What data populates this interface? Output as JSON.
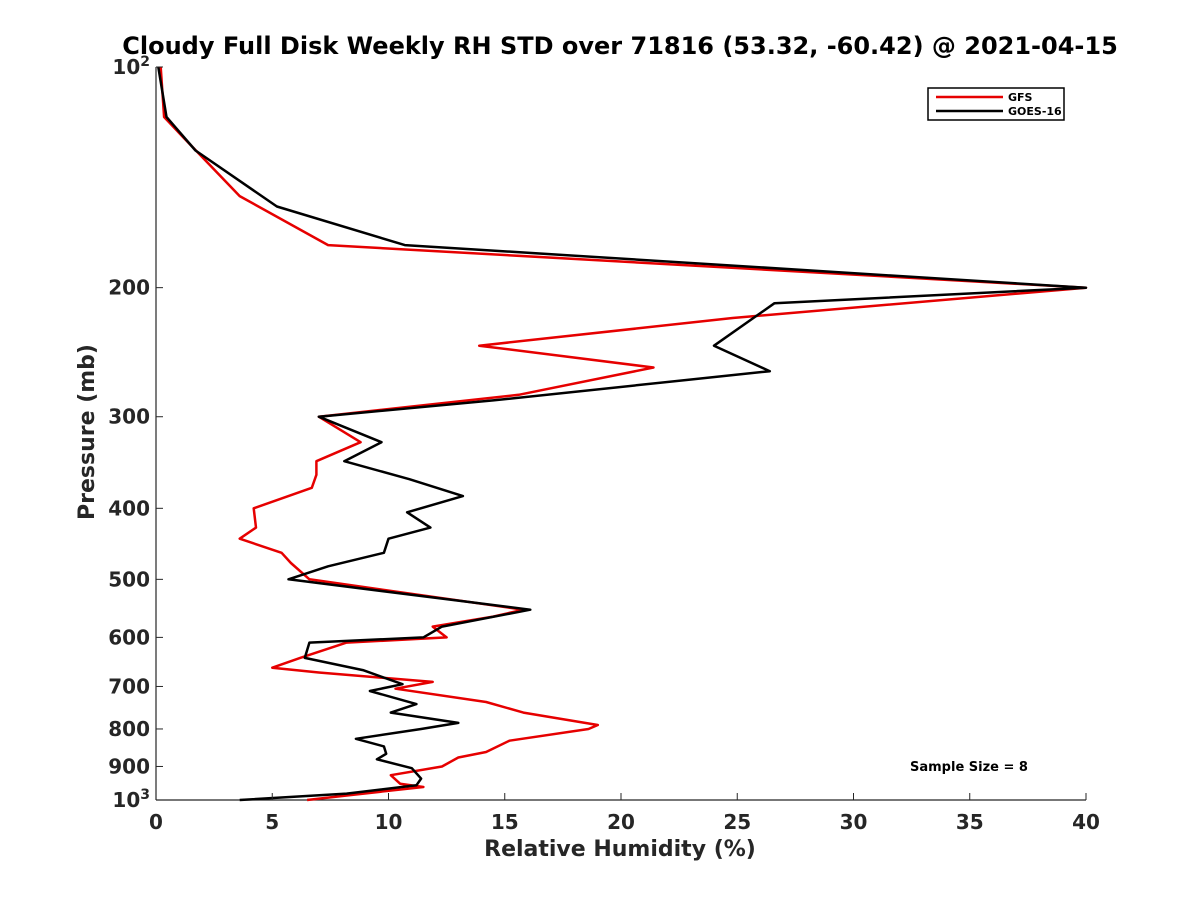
{
  "chart_data": {
    "type": "line",
    "title": "Cloudy Full Disk Weekly RH STD over 71816 (53.32, -60.42) @ 2021-04-15",
    "xlabel": "Relative Humidity (%)",
    "ylabel": "Pressure (mb)",
    "xlim": [
      0,
      40
    ],
    "ylim": [
      100,
      1000
    ],
    "y_scale": "log",
    "y_reversed": true,
    "x_ticks": [
      0,
      5,
      10,
      15,
      20,
      25,
      30,
      35,
      40
    ],
    "x_tick_labels": [
      "0",
      "5",
      "10",
      "15",
      "20",
      "25",
      "30",
      "35",
      "40"
    ],
    "y_ticks": [
      100,
      200,
      300,
      400,
      500,
      600,
      700,
      800,
      900,
      1000
    ],
    "y_tick_labels": [
      {
        "base": "10",
        "exp": "2"
      },
      {
        "base": "200",
        "exp": ""
      },
      {
        "base": "300",
        "exp": ""
      },
      {
        "base": "400",
        "exp": ""
      },
      {
        "base": "500",
        "exp": ""
      },
      {
        "base": "600",
        "exp": ""
      },
      {
        "base": "700",
        "exp": ""
      },
      {
        "base": "800",
        "exp": ""
      },
      {
        "base": "900",
        "exp": ""
      },
      {
        "base": "10",
        "exp": "3"
      }
    ],
    "grid": false,
    "legend_position": "top-right",
    "annotation": "Sample Size = 8",
    "series": [
      {
        "name": "GFS",
        "color": "#e60000",
        "points": [
          [
            0.2,
            100
          ],
          [
            0.35,
            117
          ],
          [
            1.2,
            125
          ],
          [
            3.6,
            150
          ],
          [
            7.4,
            175
          ],
          [
            40,
            200
          ],
          [
            24.8,
            220
          ],
          [
            13.9,
            240
          ],
          [
            21.4,
            257
          ],
          [
            15.6,
            280
          ],
          [
            7.0,
            300
          ],
          [
            8.8,
            325
          ],
          [
            6.9,
            345
          ],
          [
            6.9,
            360
          ],
          [
            6.7,
            375
          ],
          [
            4.2,
            400
          ],
          [
            4.3,
            425
          ],
          [
            3.6,
            440
          ],
          [
            5.4,
            460
          ],
          [
            5.8,
            475
          ],
          [
            6.6,
            500
          ],
          [
            15.8,
            550
          ],
          [
            14.5,
            562
          ],
          [
            11.9,
            580
          ],
          [
            12.5,
            600
          ],
          [
            8.2,
            610
          ],
          [
            6.2,
            640
          ],
          [
            5.0,
            660
          ],
          [
            7.0,
            670
          ],
          [
            11.9,
            690
          ],
          [
            10.3,
            705
          ],
          [
            14.2,
            735
          ],
          [
            15.8,
            760
          ],
          [
            19.0,
            790
          ],
          [
            18.6,
            800
          ],
          [
            15.2,
            830
          ],
          [
            14.2,
            860
          ],
          [
            13.0,
            875
          ],
          [
            12.3,
            900
          ],
          [
            10.1,
            925
          ],
          [
            10.5,
            950
          ],
          [
            11.5,
            960
          ],
          [
            8.3,
            985
          ],
          [
            6.5,
            1000
          ]
        ]
      },
      {
        "name": "GOES-16",
        "color": "#000000",
        "points": [
          [
            0.1,
            100
          ],
          [
            0.45,
            117
          ],
          [
            1.7,
            130
          ],
          [
            5.2,
            155
          ],
          [
            10.7,
            175
          ],
          [
            40,
            200
          ],
          [
            26.6,
            210
          ],
          [
            24.0,
            240
          ],
          [
            26.4,
            260
          ],
          [
            14.5,
            285
          ],
          [
            7.0,
            300
          ],
          [
            9.7,
            325
          ],
          [
            8.1,
            345
          ],
          [
            10.9,
            365
          ],
          [
            13.2,
            385
          ],
          [
            10.8,
            405
          ],
          [
            11.8,
            425
          ],
          [
            10.0,
            440
          ],
          [
            9.8,
            460
          ],
          [
            7.4,
            480
          ],
          [
            5.7,
            500
          ],
          [
            16.1,
            550
          ],
          [
            12.3,
            580
          ],
          [
            11.5,
            600
          ],
          [
            6.6,
            610
          ],
          [
            6.4,
            640
          ],
          [
            8.9,
            665
          ],
          [
            10.6,
            695
          ],
          [
            9.2,
            710
          ],
          [
            11.2,
            740
          ],
          [
            10.1,
            760
          ],
          [
            13.0,
            785
          ],
          [
            11.4,
            800
          ],
          [
            8.6,
            825
          ],
          [
            9.8,
            845
          ],
          [
            9.9,
            865
          ],
          [
            9.5,
            880
          ],
          [
            11.0,
            905
          ],
          [
            11.4,
            935
          ],
          [
            11.2,
            955
          ],
          [
            8.2,
            980
          ],
          [
            3.6,
            1000
          ]
        ]
      }
    ]
  }
}
